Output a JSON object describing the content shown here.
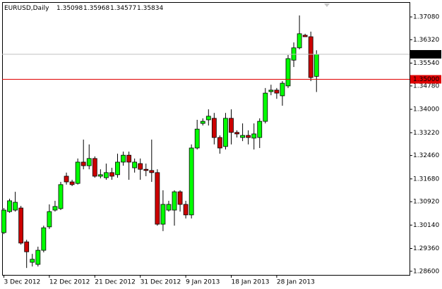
{
  "chart_data": {
    "type": "candlestick",
    "symbol": "EURUSD,Daily",
    "categories": [
      "3 Dec 2012",
      null,
      null,
      null,
      null,
      null,
      null,
      null,
      "12 Dec 2012",
      null,
      null,
      null,
      null,
      null,
      null,
      null,
      "21 Dec 2012",
      null,
      null,
      null,
      null,
      null,
      null,
      null,
      "31 Dec 2012",
      null,
      null,
      null,
      null,
      null,
      null,
      null,
      "9 Jan 2013",
      null,
      null,
      null,
      null,
      null,
      null,
      null,
      "18 Jan 2013",
      null,
      null,
      null,
      null,
      null,
      null,
      null,
      "28 Jan 2013",
      null,
      null,
      null,
      null,
      null,
      null,
      null
    ],
    "open": [
      1.2989,
      1.3059,
      1.3064,
      1.3071,
      1.2958,
      1.289,
      1.2883,
      1.293,
      1.3008,
      1.3064,
      1.3069,
      1.3177,
      1.3158,
      1.3153,
      1.3224,
      1.3212,
      1.3236,
      1.3177,
      1.3172,
      1.3189,
      1.3182,
      1.3224,
      1.3247,
      1.3205,
      1.3219,
      1.32,
      1.3196,
      1.3189,
      1.3017,
      1.3064,
      1.3064,
      1.3125,
      1.3083,
      1.3048,
      1.3271,
      1.3353,
      1.3365,
      1.337,
      1.3306,
      1.3276,
      1.337,
      1.3323,
      1.3306,
      1.3313,
      1.3304,
      1.3306,
      1.336,
      1.3459,
      1.3464,
      1.3445,
      1.3478,
      1.3564,
      1.3605,
      1.3647,
      1.3642,
      1.35098
    ],
    "high": [
      1.3071,
      1.3102,
      1.3125,
      1.3078,
      1.2965,
      1.2918,
      1.2942,
      1.3012,
      1.3083,
      1.3095,
      1.3158,
      1.3189,
      1.3165,
      1.3236,
      1.3299,
      1.3283,
      1.3243,
      1.32,
      1.3219,
      1.3205,
      1.3252,
      1.3259,
      1.3259,
      1.3236,
      1.3236,
      1.3219,
      1.3299,
      1.32,
      1.313,
      1.3095,
      1.313,
      1.313,
      1.3095,
      1.3283,
      1.3365,
      1.337,
      1.34,
      1.3388,
      1.3313,
      1.3388,
      1.34,
      1.333,
      1.3353,
      1.333,
      1.3353,
      1.337,
      1.3471,
      1.3482,
      1.3471,
      1.3494,
      1.3581,
      1.3623,
      1.3713,
      1.3652,
      1.3659,
      1.35968
    ],
    "low": [
      1.2984,
      1.3055,
      1.3059,
      1.2949,
      1.2871,
      1.2876,
      1.2876,
      1.2923,
      1.3001,
      1.3059,
      1.3064,
      1.3149,
      1.3144,
      1.3149,
      1.32,
      1.32,
      1.3172,
      1.317,
      1.3165,
      1.3165,
      1.3172,
      1.3212,
      1.3165,
      1.3189,
      1.3165,
      1.3177,
      1.3158,
      1.3012,
      1.2994,
      1.3059,
      1.3012,
      1.3059,
      1.3036,
      1.3036,
      1.3266,
      1.3346,
      1.3346,
      1.3283,
      1.3252,
      1.3266,
      1.3283,
      1.3306,
      1.3294,
      1.3283,
      1.3266,
      1.3271,
      1.3353,
      1.3447,
      1.3435,
      1.3412,
      1.3471,
      1.3541,
      1.36,
      1.3642,
      1.3494,
      1.34577
    ],
    "close": [
      1.3064,
      1.3095,
      1.309,
      1.2954,
      1.2925,
      1.29,
      1.293,
      1.3005,
      1.3059,
      1.3076,
      1.3149,
      1.3158,
      1.3149,
      1.3224,
      1.3212,
      1.3236,
      1.3177,
      1.3182,
      1.3189,
      1.3177,
      1.3224,
      1.3247,
      1.3224,
      1.3224,
      1.32,
      1.3196,
      1.3189,
      1.3017,
      1.3083,
      1.3083,
      1.3125,
      1.3083,
      1.3048,
      1.3271,
      1.3334,
      1.336,
      1.3377,
      1.3306,
      1.3271,
      1.337,
      1.3323,
      1.3318,
      1.3313,
      1.3306,
      1.3318,
      1.336,
      1.3454,
      1.3464,
      1.3454,
      1.3487,
      1.3569,
      1.3605,
      1.3652,
      1.3642,
      1.3506,
      1.35834
    ],
    "up_color": "#00ff00",
    "down_color": "#cc0000",
    "current_price_color": "#c0c0c0",
    "ylim": [
      1.28479,
      1.37574
    ],
    "yticks": [
      {
        "value": 1.3708,
        "label": "1.37080"
      },
      {
        "value": 1.3632,
        "label": "1.36320"
      },
      {
        "value": 1.3554,
        "label": "1.35540"
      },
      {
        "value": 1.3478,
        "label": "1.34780"
      },
      {
        "value": 1.34,
        "label": "1.34000"
      },
      {
        "value": 1.3322,
        "label": "1.33220"
      },
      {
        "value": 1.3246,
        "label": "1.32460"
      },
      {
        "value": 1.3168,
        "label": "1.31680"
      },
      {
        "value": 1.3092,
        "label": "1.30920"
      },
      {
        "value": 1.3014,
        "label": "1.30140"
      },
      {
        "value": 1.2936,
        "label": "1.29360"
      },
      {
        "value": 1.286,
        "label": "1.28600"
      }
    ],
    "levels": [
      {
        "value": 1.35,
        "label": "1.35000",
        "color": "#e00000"
      }
    ]
  }
}
